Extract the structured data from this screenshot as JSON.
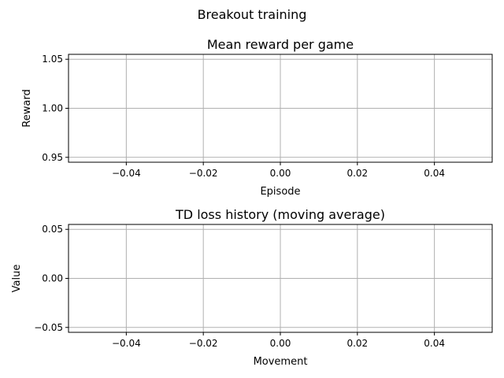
{
  "figure_title": "Breakout training",
  "colors": {
    "grid": "#b0b0b0",
    "axis": "#000000",
    "background": "#ffffff"
  },
  "chart_data": [
    {
      "type": "line",
      "title": "Mean reward per game",
      "xlabel": "Episode",
      "ylabel": "Reward",
      "xlim": [
        -0.055,
        0.055
      ],
      "ylim": [
        0.945,
        1.055
      ],
      "xticks": [
        -0.04,
        -0.02,
        0.0,
        0.02,
        0.04
      ],
      "xtick_labels": [
        "−0.04",
        "−0.02",
        "0.00",
        "0.02",
        "0.04"
      ],
      "yticks": [
        0.95,
        1.0,
        1.05
      ],
      "ytick_labels": [
        "0.95",
        "1.00",
        "1.05"
      ],
      "grid": true,
      "series": [
        {
          "x": [],
          "y": []
        }
      ]
    },
    {
      "type": "line",
      "title": "TD loss history (moving average)",
      "xlabel": "Movement",
      "ylabel": "Value",
      "xlim": [
        -0.055,
        0.055
      ],
      "ylim": [
        -0.055,
        0.055
      ],
      "xticks": [
        -0.04,
        -0.02,
        0.0,
        0.02,
        0.04
      ],
      "xtick_labels": [
        "−0.04",
        "−0.02",
        "0.00",
        "0.02",
        "0.04"
      ],
      "yticks": [
        -0.05,
        0.0,
        0.05
      ],
      "ytick_labels": [
        "−0.05",
        "0.00",
        "0.05"
      ],
      "grid": true,
      "series": [
        {
          "x": [],
          "y": []
        }
      ]
    }
  ]
}
